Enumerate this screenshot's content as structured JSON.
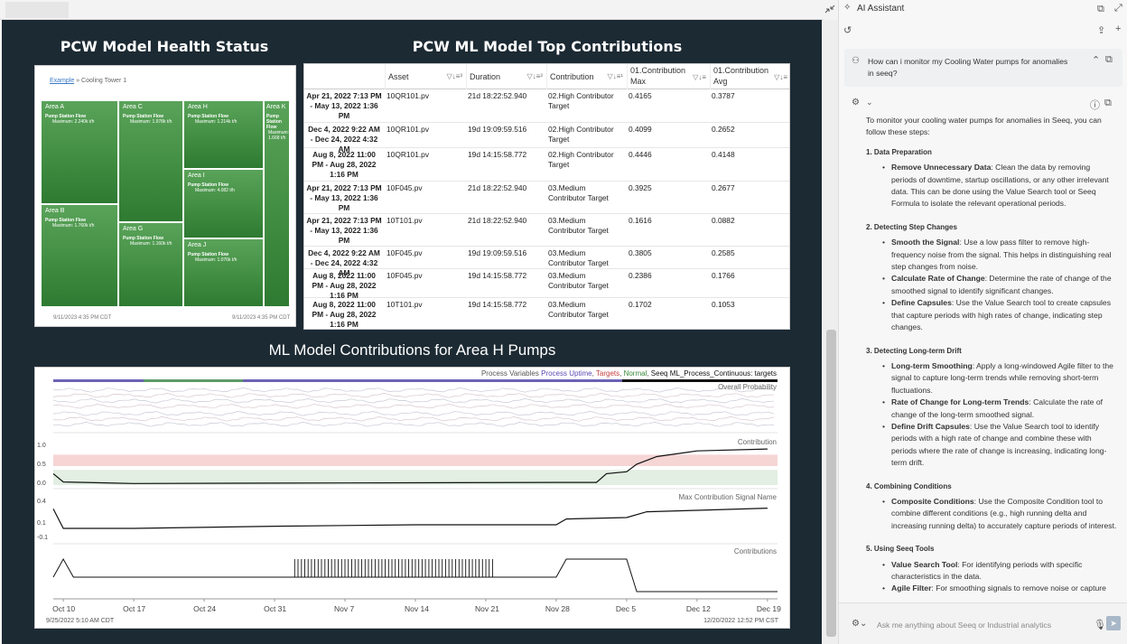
{
  "dashboard": {
    "treemap_title": "PCW Model Health Status",
    "table_title": "PCW ML Model Top Contributions",
    "chart_title": "ML Model Contributions for Area H Pumps"
  },
  "treemap": {
    "breadcrumb_link": "Example",
    "breadcrumb_sep": "»",
    "breadcrumb_current": "Cooling Tower 1",
    "tiles": [
      {
        "name": "Area A",
        "signal": "Pump Station Flow",
        "max": "Maximum: 2.240k t/h"
      },
      {
        "name": "Area B",
        "signal": "Pump Station Flow",
        "max": "Maximum: 1.760k t/h"
      },
      {
        "name": "Area C",
        "signal": "Pump Station Flow",
        "max": "Maximum: 1.978k t/h"
      },
      {
        "name": "Area G",
        "signal": "Pump Station Flow",
        "max": "Maximum: 1.160k t/h"
      },
      {
        "name": "Area H",
        "signal": "Pump Station Flow",
        "max": "Maximum: 1.214k t/h"
      },
      {
        "name": "Area I",
        "signal": "Pump Station Flow",
        "max": "Maximum: 4.082 t/h"
      },
      {
        "name": "Area J",
        "signal": "Pump Station Flow",
        "max": "Maximum: 1.076k t/h"
      },
      {
        "name": "Area K",
        "signal": "Pump Station Flow",
        "max": "Maximum: 1.668 t/h"
      }
    ],
    "foot_left": "9/11/2023 4:35 PM CDT",
    "foot_right": "9/11/2023 4:35 PM CDT"
  },
  "table": {
    "headers": [
      "Asset",
      "Duration",
      "Contribution",
      "01.Contribution Max",
      "01.Contribution Avg"
    ],
    "rows": [
      {
        "time": "Apr 21, 2022 7:13 PM - May 13, 2022 1:36 PM",
        "asset": "10QR101.pv",
        "duration": "21d 18:22:52.940",
        "contribution": "02.High Contributor Target",
        "max": "0.4165",
        "avg": "0.3787"
      },
      {
        "time": "Dec 4, 2022 9:22 AM - Dec 24, 2022 4:32 AM",
        "asset": "10QR101.pv",
        "duration": "19d 19:09:59.516",
        "contribution": "02.High Contributor Target",
        "max": "0.4099",
        "avg": "0.2652"
      },
      {
        "time": "Aug 8, 2022 11:00 PM - Aug 28, 2022 1:16 PM",
        "asset": "10QR101.pv",
        "duration": "19d 14:15:58.772",
        "contribution": "02.High Contributor Target",
        "max": "0.4446",
        "avg": "0.4148"
      },
      {
        "time": "Apr 21, 2022 7:13 PM - May 13, 2022 1:36 PM",
        "asset": "10F045.pv",
        "duration": "21d 18:22:52.940",
        "contribution": "03.Medium Contributor Target",
        "max": "0.3925",
        "avg": "0.2677"
      },
      {
        "time": "Apr 21, 2022 7:13 PM - May 13, 2022 1:36 PM",
        "asset": "10T101.pv",
        "duration": "21d 18:22:52.940",
        "contribution": "03.Medium Contributor Target",
        "max": "0.1616",
        "avg": "0.0882"
      },
      {
        "time": "Dec 4, 2022 9:22 AM - Dec 24, 2022 4:32 AM",
        "asset": "10F045.pv",
        "duration": "19d 19:09:59.516",
        "contribution": "03.Medium Contributor Target",
        "max": "0.3805",
        "avg": "0.2585"
      },
      {
        "time": "Aug 8, 2022 11:00 PM - Aug 28, 2022 1:16 PM",
        "asset": "10F045.pv",
        "duration": "19d 14:15:58.772",
        "contribution": "03.Medium Contributor Target",
        "max": "0.2386",
        "avg": "0.1766"
      },
      {
        "time": "Aug 8, 2022 11:00 PM - Aug 28, 2022 1:16 PM",
        "asset": "10T101.pv",
        "duration": "19d 14:15:58.772",
        "contribution": "03.Medium Contributor Target",
        "max": "0.1702",
        "avg": "0.1053"
      }
    ]
  },
  "chart": {
    "legend_prefix": "Process Variables",
    "legend_uptime": "Process Uptime",
    "legend_targets": "Targets",
    "legend_normal": "Normal",
    "legend_seeq": "Seeq ML_Process_Continuous: targets",
    "lane_labels": [
      "Overall Probability",
      "Contribution",
      "Max Contribution Signal Name",
      "Contributions"
    ],
    "foot_left": "9/25/2022 5:10 AM CDT",
    "foot_right": "12/20/2022 12:52 PM CST"
  },
  "chart_data": {
    "type": "line",
    "x_ticks": [
      "Oct 10",
      "Oct 17",
      "Oct 24",
      "Oct 31",
      "Nov 7",
      "Nov 14",
      "Nov 21",
      "Nov 28",
      "Dec 5",
      "Dec 12",
      "Dec 19"
    ],
    "y_ticks_contribution": [
      "1.0",
      "0.5",
      "0.0"
    ],
    "y_ticks_maxsignal": [
      "0.4",
      "0.1",
      "-0.1"
    ],
    "series": [
      {
        "name": "Contribution",
        "x": [
          "Oct 9",
          "Oct 10",
          "Oct 17",
          "Oct 31",
          "Nov 14",
          "Nov 28",
          "Dec 2",
          "Dec 3",
          "Dec 5",
          "Dec 6",
          "Dec 8",
          "Dec 12",
          "Dec 19"
        ],
        "values": [
          0.3,
          0.08,
          0.04,
          0.05,
          0.06,
          0.07,
          0.07,
          0.3,
          0.35,
          0.55,
          0.75,
          0.9,
          0.95
        ]
      },
      {
        "name": "Max Contribution Signal Name",
        "x": [
          "Oct 9",
          "Oct 10",
          "Oct 17",
          "Oct 31",
          "Nov 14",
          "Nov 28",
          "Nov 29",
          "Dec 5",
          "Dec 7",
          "Dec 12",
          "Dec 19"
        ],
        "values": [
          0.32,
          0.05,
          0.05,
          0.08,
          0.1,
          0.1,
          0.18,
          0.2,
          0.28,
          0.3,
          0.33
        ]
      }
    ]
  },
  "assistant": {
    "title": "AI Assistant",
    "question": "How can i monitor my Cooling Water pumps for anomalies in seeq?",
    "intro": "To monitor your cooling water pumps for anomalies in Seeq, you can follow these steps:",
    "sections": [
      {
        "title": "1. Data Preparation",
        "items": [
          {
            "bold": "Remove Unnecessary Data",
            "text": ": Clean the data by removing periods of downtime, startup oscillations, or any other irrelevant data. This can be done using the Value Search tool or Seeq Formula to isolate the relevant operational periods."
          }
        ]
      },
      {
        "title": "2. Detecting Step Changes",
        "items": [
          {
            "bold": "Smooth the Signal",
            "text": ": Use a low pass filter to remove high-frequency noise from the signal. This helps in distinguishing real step changes from noise."
          },
          {
            "bold": "Calculate Rate of Change",
            "text": ": Determine the rate of change of the smoothed signal to identify significant changes."
          },
          {
            "bold": "Define Capsules",
            "text": ": Use the Value Search tool to create capsules that capture periods with high rates of change, indicating step changes."
          }
        ]
      },
      {
        "title": "3. Detecting Long-term Drift",
        "items": [
          {
            "bold": "Long-term Smoothing",
            "text": ": Apply a long-windowed Agile filter to the signal to capture long-term trends while removing short-term fluctuations."
          },
          {
            "bold": "Rate of Change for Long-term Trends",
            "text": ": Calculate the rate of change of the long-term smoothed signal."
          },
          {
            "bold": "Define Drift Capsules",
            "text": ": Use the Value Search tool to identify periods with a high rate of change and combine these with periods where the rate of change is increasing, indicating long-term drift."
          }
        ]
      },
      {
        "title": "4. Combining Conditions",
        "items": [
          {
            "bold": "Composite Conditions",
            "text": ": Use the Composite Condition tool to combine different conditions (e.g., high running delta and increasing running delta) to accurately capture periods of interest."
          }
        ]
      },
      {
        "title": "5. Using Seeq Tools",
        "items": [
          {
            "bold": "Value Search Tool",
            "text": ": For identifying periods with specific characteristics in the data."
          },
          {
            "bold": "Agile Filter",
            "text": ": For smoothing signals to remove noise or capture"
          }
        ]
      }
    ],
    "input_placeholder": "Ask me anything about Seeq or Industrial analytics"
  }
}
